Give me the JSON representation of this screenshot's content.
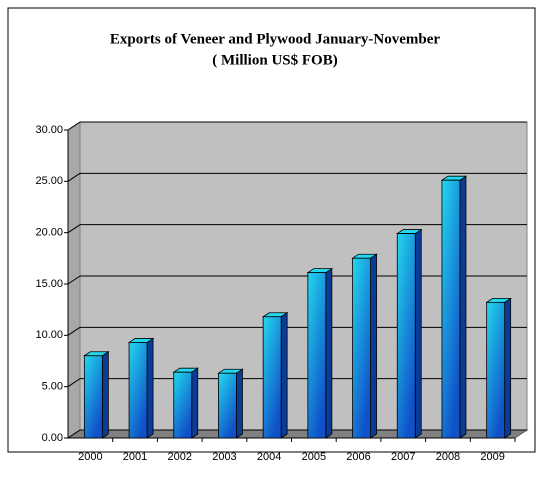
{
  "chart_data": {
    "type": "bar",
    "title": "Exports of Veneer and Plywood January-November",
    "subtitle": "( Million US$ FOB)",
    "categories": [
      "2000",
      "2001",
      "2002",
      "2003",
      "2004",
      "2005",
      "2006",
      "2007",
      "2008",
      "2009"
    ],
    "values": [
      8.4,
      9.7,
      6.8,
      6.7,
      12.2,
      16.5,
      17.9,
      20.3,
      25.5,
      13.6
    ],
    "color": "#22d8ee",
    "ylim": [
      0,
      30
    ],
    "yticks": [
      {
        "value": 0,
        "label": "0.00"
      },
      {
        "value": 5,
        "label": "5.00"
      },
      {
        "value": 10,
        "label": "10.00"
      },
      {
        "value": 15,
        "label": "15.00"
      },
      {
        "value": 20,
        "label": "20.00"
      },
      {
        "value": 25,
        "label": "25.00"
      },
      {
        "value": 30,
        "label": "30.00"
      }
    ],
    "grid": true
  }
}
